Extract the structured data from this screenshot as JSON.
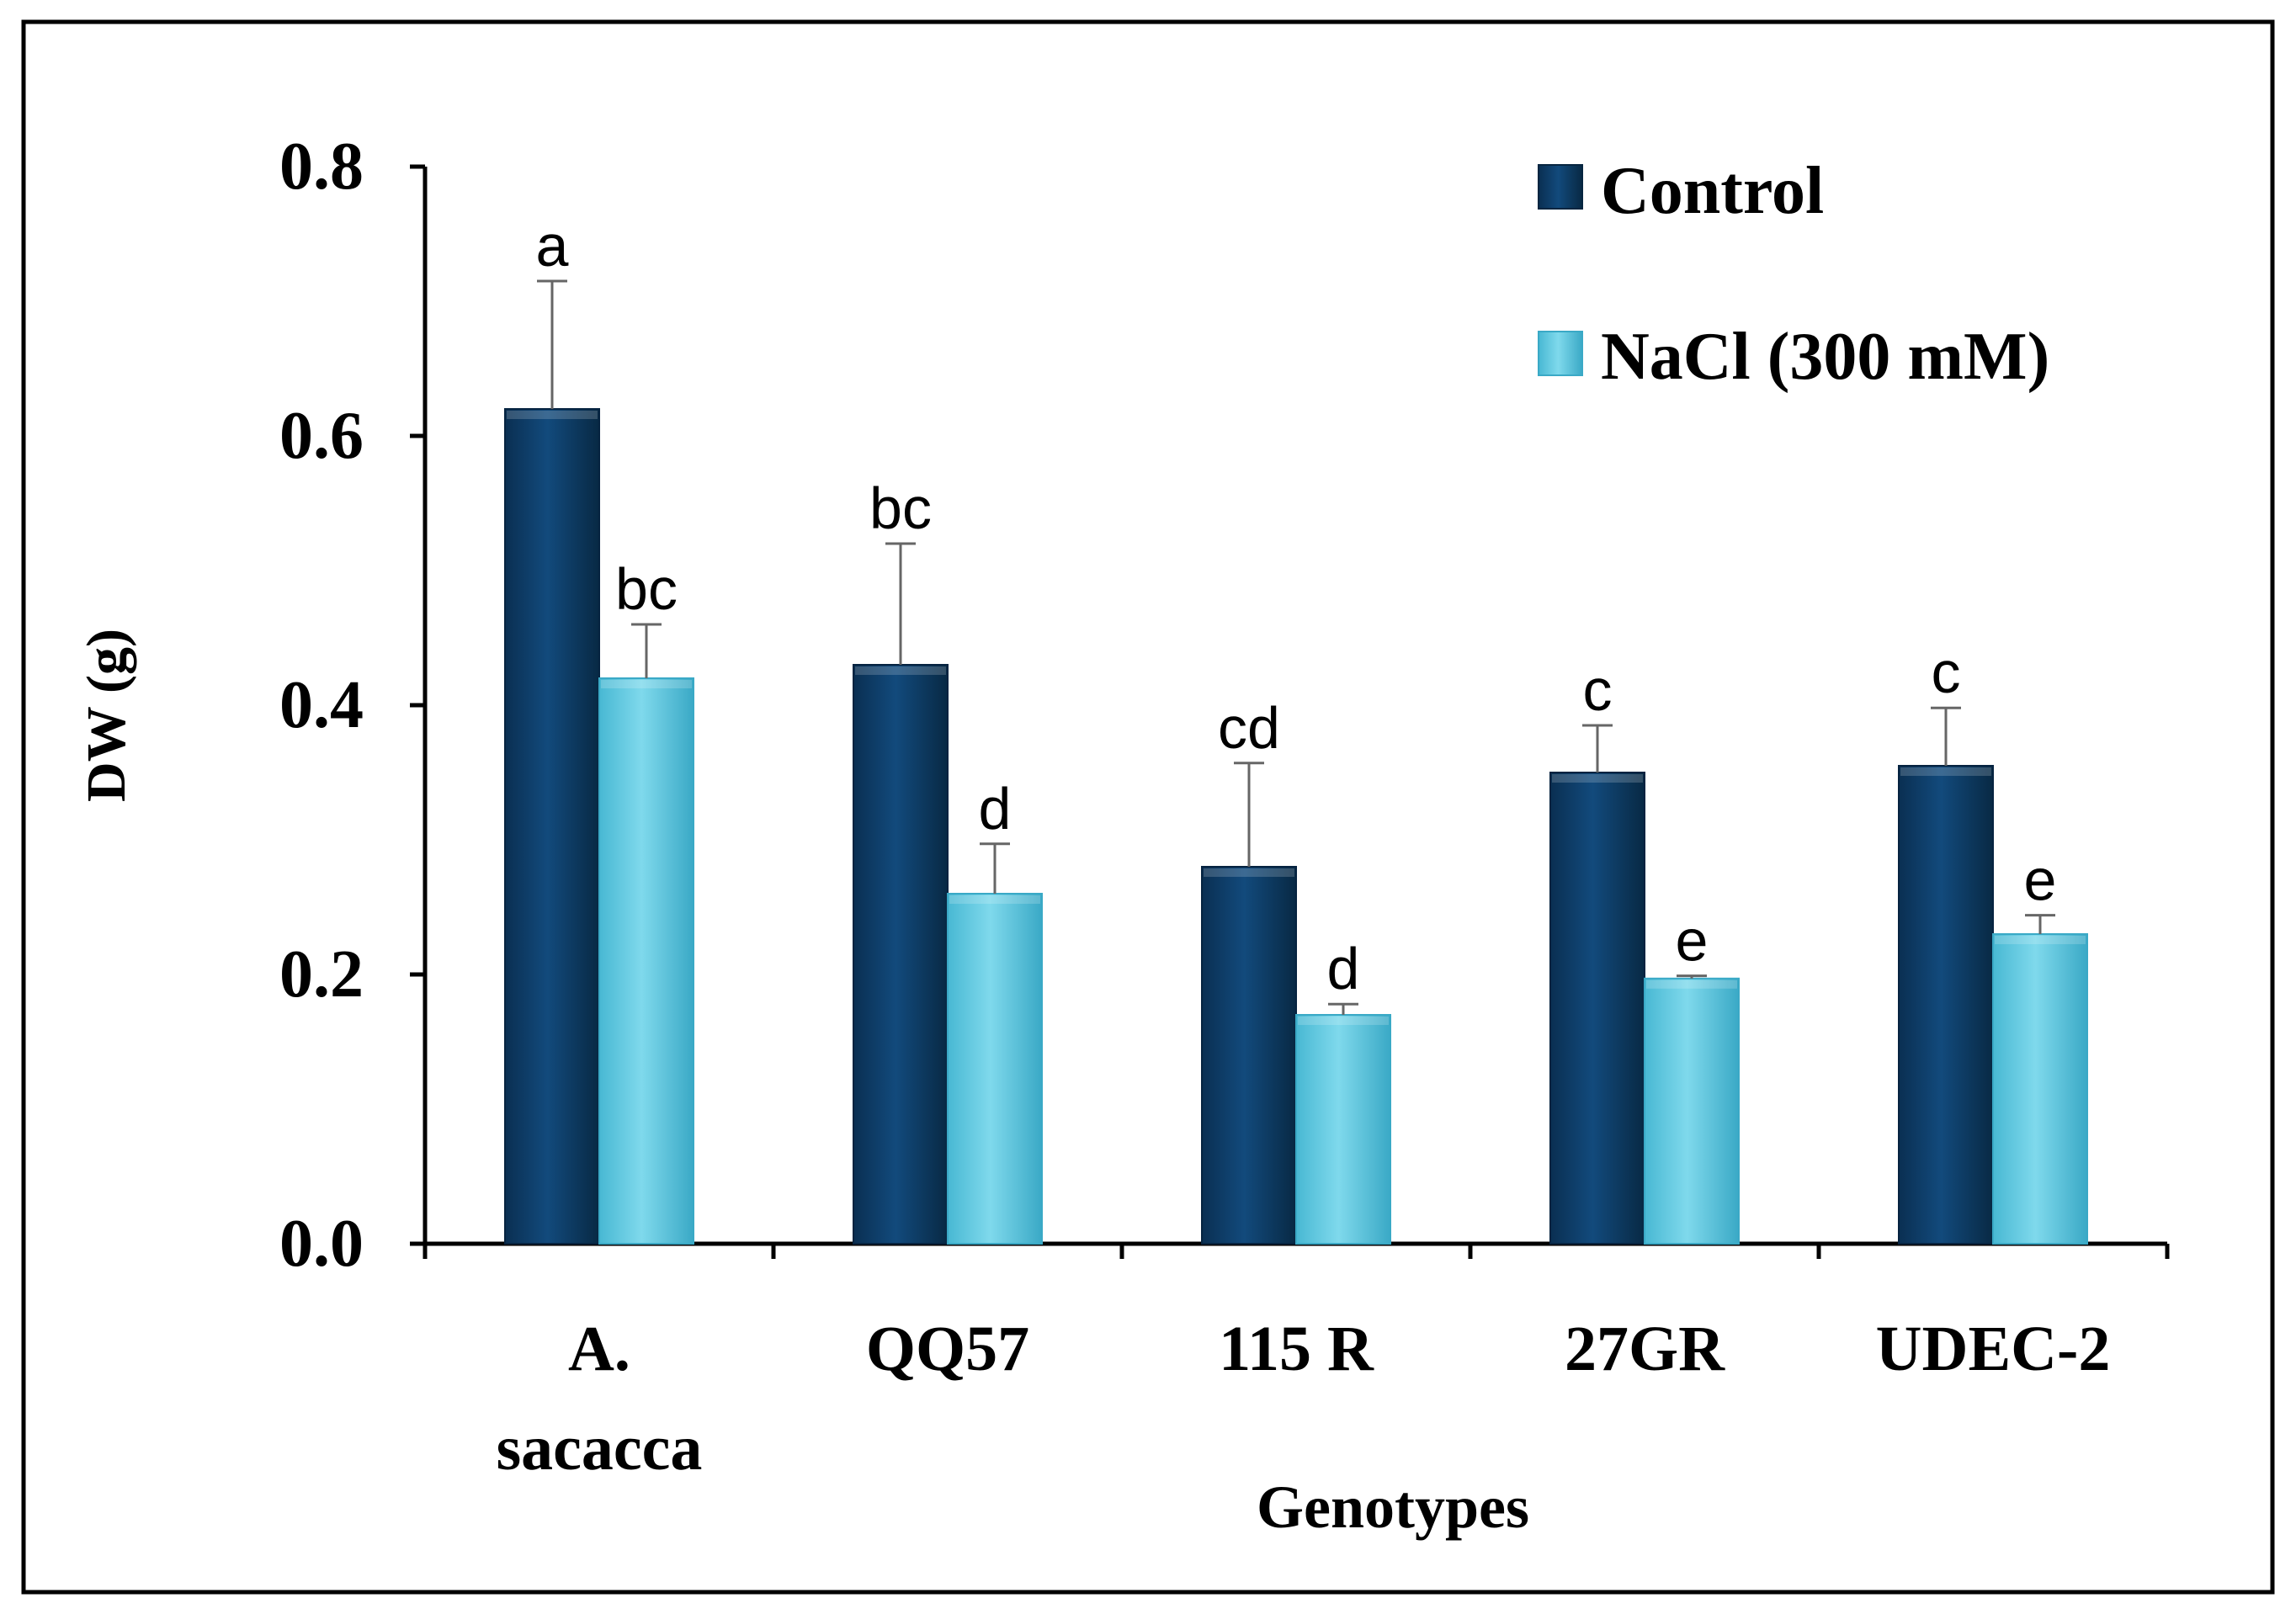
{
  "chart_data": {
    "type": "bar",
    "title": "",
    "xlabel": "Genotypes",
    "ylabel": "DW (g)",
    "ylim": [
      0,
      0.8
    ],
    "yticks": [
      "0.0",
      "0.2",
      "0.4",
      "0.6",
      "0.8"
    ],
    "ytick_values": [
      0,
      0.2,
      0.4,
      0.6,
      0.8
    ],
    "categories": [
      "A. sacacca",
      "QQ57",
      "115 R",
      "27GR",
      "UDEC-2"
    ],
    "category_lines": [
      [
        "A.",
        "sacacca"
      ],
      [
        "QQ57"
      ],
      [
        "115 R"
      ],
      [
        "27GR"
      ],
      [
        "UDEC-2"
      ]
    ],
    "series": [
      {
        "name": "Control",
        "color": "#0d3b66",
        "values": [
          0.62,
          0.43,
          0.28,
          0.35,
          0.355
        ],
        "errors": [
          0.095,
          0.09,
          0.077,
          0.035,
          0.043
        ],
        "letters": [
          "a",
          "bc",
          "cd",
          "c",
          "c"
        ]
      },
      {
        "name": "NaCl (300 mM)",
        "color": "#5cc8e0",
        "values": [
          0.42,
          0.26,
          0.17,
          0.197,
          0.23
        ],
        "errors": [
          0.04,
          0.037,
          0.008,
          0.002,
          0.014
        ],
        "letters": [
          "bc",
          "d",
          "d",
          "e",
          "e"
        ]
      }
    ],
    "legend": {
      "position": "top-right"
    },
    "grid": false
  }
}
